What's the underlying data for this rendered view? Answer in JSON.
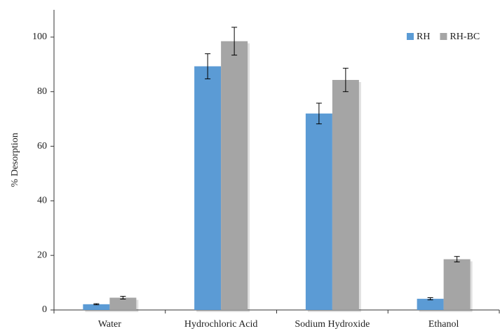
{
  "chart_data": {
    "type": "bar",
    "y_label": "% Desorption",
    "categories": [
      "Water",
      "Hydrochloric Acid",
      "Sodium Hydroxide",
      "Ethanol"
    ],
    "series": [
      {
        "name": "RH",
        "color": "#5b9bd5",
        "values": [
          2.1,
          89.3,
          72.0,
          4.1
        ],
        "errors": [
          0.2,
          4.6,
          3.8,
          0.4
        ]
      },
      {
        "name": "RH-BC",
        "color": "#a5a5a5",
        "values": [
          4.5,
          98.5,
          84.3,
          18.6
        ],
        "errors": [
          0.5,
          5.1,
          4.3,
          1.0
        ]
      }
    ],
    "ylim": [
      0,
      110
    ],
    "yticks": [
      0,
      20,
      40,
      60,
      80,
      100
    ],
    "grid": false,
    "legend": "upper right"
  }
}
